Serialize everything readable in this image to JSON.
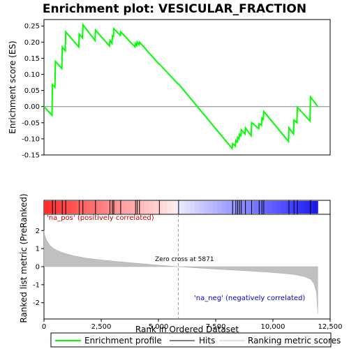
{
  "chart_data": {
    "title": "Enrichment plot: VESICULAR_FRACTION",
    "type": "line",
    "x_range": [
      0,
      12500
    ],
    "x_ticks": [
      0,
      2500,
      5000,
      7500,
      10000,
      12500
    ],
    "x_tick_labels": [
      "0",
      "2,500",
      "5,000",
      "7,500",
      "10,000",
      "12,500"
    ],
    "xlabel": "Rank in Ordered Dataset",
    "es_panel": {
      "ylabel": "Enrichment score (ES)",
      "ylim": [
        -0.15,
        0.27
      ],
      "y_ticks": [
        -0.15,
        -0.1,
        -0.05,
        0.0,
        0.05,
        0.1,
        0.15,
        0.2,
        0.25
      ],
      "y_tick_labels": [
        "-0.15",
        "-0.10",
        "-0.05",
        "0.00",
        "0.05",
        "0.10",
        "0.15",
        "0.20",
        "0.25"
      ],
      "series_name": "Enrichment profile",
      "color": "#00ff00",
      "points": [
        [
          0,
          0.0
        ],
        [
          350,
          -0.027
        ],
        [
          370,
          0.068
        ],
        [
          480,
          0.06
        ],
        [
          500,
          0.14
        ],
        [
          780,
          0.118
        ],
        [
          800,
          0.185
        ],
        [
          930,
          0.173
        ],
        [
          950,
          0.232
        ],
        [
          1520,
          0.185
        ],
        [
          1540,
          0.225
        ],
        [
          1680,
          0.213
        ],
        [
          1700,
          0.254
        ],
        [
          2230,
          0.205
        ],
        [
          2250,
          0.237
        ],
        [
          2860,
          0.188
        ],
        [
          2880,
          0.205
        ],
        [
          2970,
          0.196
        ],
        [
          2990,
          0.222
        ],
        [
          3030,
          0.215
        ],
        [
          3050,
          0.242
        ],
        [
          3330,
          0.221
        ],
        [
          3350,
          0.232
        ],
        [
          3980,
          0.185
        ],
        [
          4000,
          0.196
        ],
        [
          4050,
          0.19
        ],
        [
          4070,
          0.2
        ],
        [
          4150,
          0.192
        ],
        [
          4170,
          0.2
        ],
        [
          5020,
          0.132
        ],
        [
          5040,
          0.132
        ],
        [
          5860,
          0.07
        ],
        [
          5880,
          0.07
        ],
        [
          8220,
          -0.13
        ],
        [
          8240,
          -0.115
        ],
        [
          8360,
          -0.123
        ],
        [
          8380,
          -0.105
        ],
        [
          8440,
          -0.11
        ],
        [
          8460,
          -0.095
        ],
        [
          8520,
          -0.1
        ],
        [
          8540,
          -0.085
        ],
        [
          8600,
          -0.09
        ],
        [
          8620,
          -0.072
        ],
        [
          8780,
          -0.085
        ],
        [
          8800,
          -0.066
        ],
        [
          9050,
          -0.09
        ],
        [
          9070,
          -0.05
        ],
        [
          9380,
          -0.068
        ],
        [
          9400,
          -0.053
        ],
        [
          9500,
          -0.058
        ],
        [
          9520,
          -0.035
        ],
        [
          9580,
          -0.04
        ],
        [
          9600,
          -0.015
        ],
        [
          10680,
          -0.108
        ],
        [
          10700,
          -0.066
        ],
        [
          10900,
          -0.085
        ],
        [
          10920,
          -0.042
        ],
        [
          11050,
          -0.05
        ],
        [
          11070,
          -0.002
        ],
        [
          11620,
          -0.045
        ],
        [
          11640,
          0.03
        ],
        [
          11960,
          0.0
        ]
      ]
    },
    "hits_panel": {
      "label": "Hits",
      "hit_positions": [
        370,
        500,
        800,
        950,
        1540,
        1700,
        2250,
        2880,
        2990,
        3050,
        3350,
        4000,
        4070,
        4170,
        5040,
        5880,
        8240,
        8380,
        8460,
        8540,
        8620,
        8800,
        9070,
        9400,
        9520,
        9600,
        10700,
        10920,
        11070,
        11640
      ]
    },
    "metric_panel": {
      "ylabel": "Ranked list metric (PreRanked)",
      "ylim": [
        -2.9,
        2.9
      ],
      "y_ticks": [
        -2,
        -1,
        0,
        1,
        2
      ],
      "y_tick_labels": [
        "-2",
        "-1",
        "0",
        "1",
        "2"
      ],
      "series_name": "Ranking metric scores",
      "color": "#c0c0c0",
      "zero_cross": 5871,
      "zero_cross_label": "Zero cross at 5871",
      "pos_label": "'na_pos' (positively correlated)",
      "neg_label": "'na_neg' (negatively correlated)",
      "points": [
        [
          0,
          2.0
        ],
        [
          40,
          1.7
        ],
        [
          120,
          1.45
        ],
        [
          250,
          1.2
        ],
        [
          400,
          1.02
        ],
        [
          600,
          0.88
        ],
        [
          900,
          0.74
        ],
        [
          1300,
          0.6
        ],
        [
          1800,
          0.48
        ],
        [
          2500,
          0.37
        ],
        [
          3300,
          0.27
        ],
        [
          4200,
          0.17
        ],
        [
          5000,
          0.08
        ],
        [
          5871,
          0.0
        ],
        [
          6800,
          -0.08
        ],
        [
          7800,
          -0.16
        ],
        [
          8800,
          -0.23
        ],
        [
          9700,
          -0.3
        ],
        [
          10500,
          -0.38
        ],
        [
          11000,
          -0.45
        ],
        [
          11400,
          -0.56
        ],
        [
          11650,
          -0.7
        ],
        [
          11800,
          -0.95
        ],
        [
          11900,
          -1.4
        ],
        [
          11960,
          -2.6
        ]
      ]
    },
    "legend": [
      "Enrichment profile",
      "Hits",
      "Ranking metric scores"
    ]
  }
}
